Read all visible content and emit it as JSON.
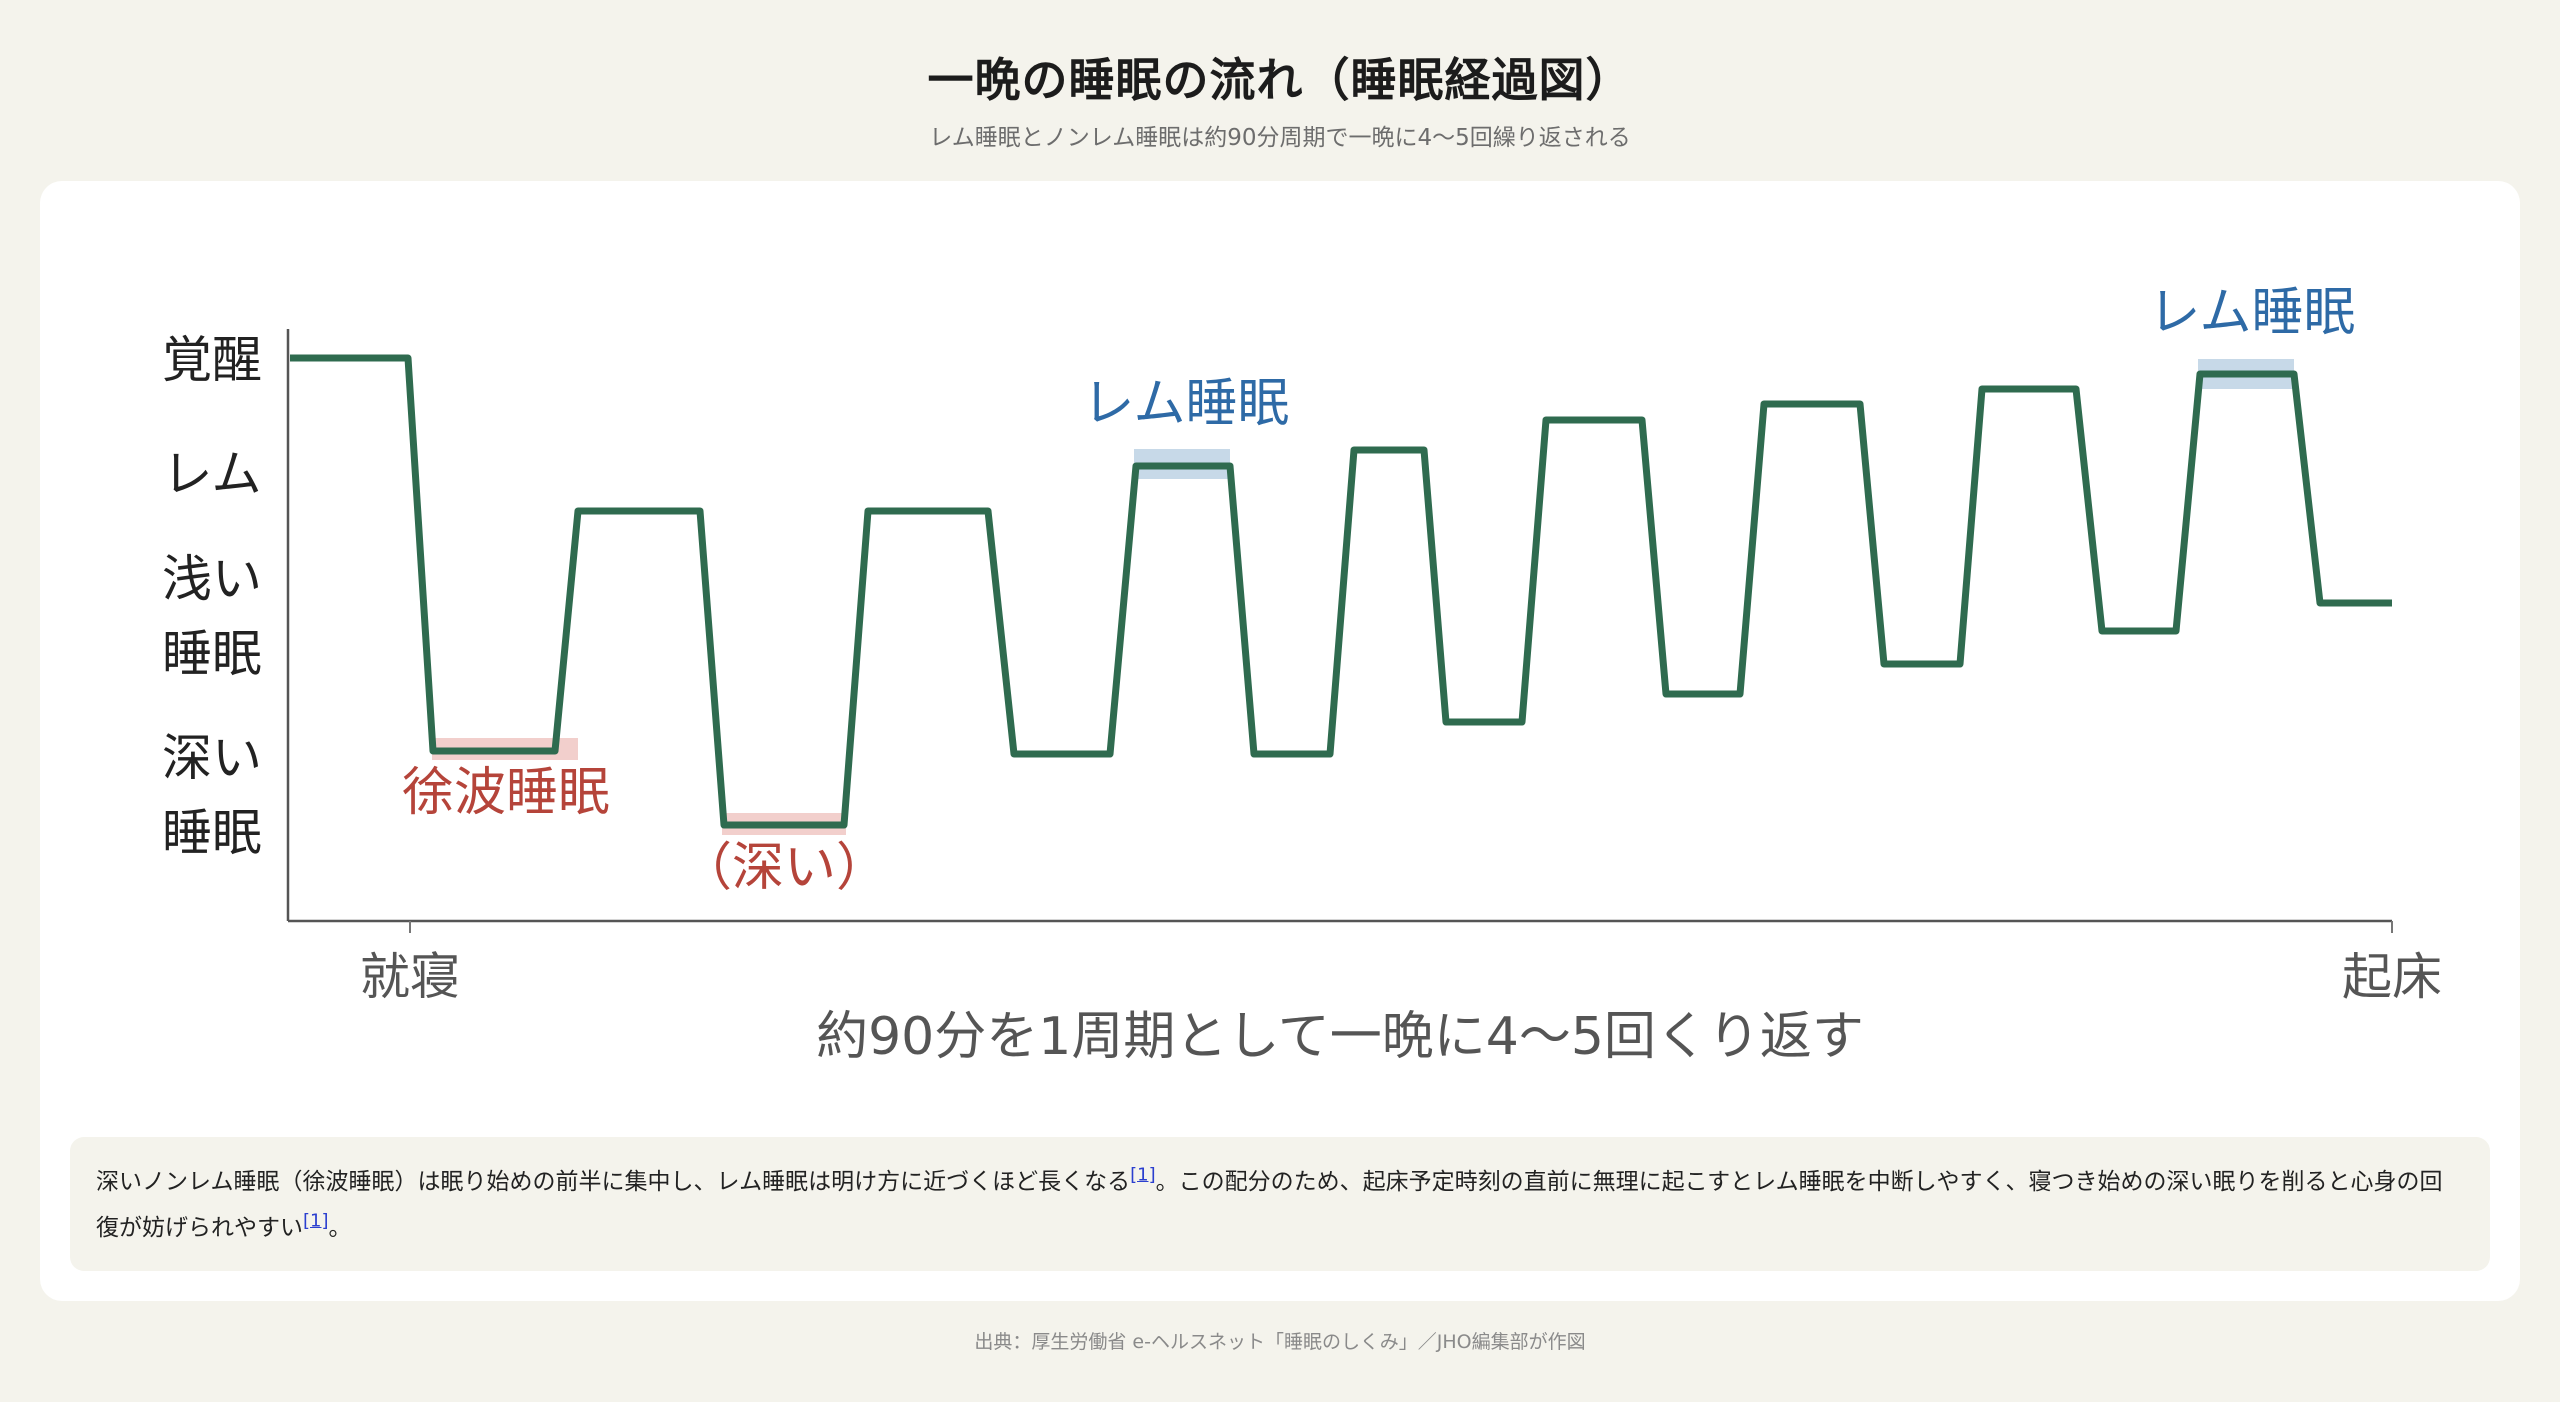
{
  "header": {
    "title": "一晩の睡眠の流れ（睡眠経過図）",
    "subtitle": "レム睡眠とノンレム睡眠は約90分周期で一晩に4〜5回繰り返される"
  },
  "diagram": {
    "y_levels": [
      "覚醒",
      "レム",
      "浅い睡眠",
      "深い睡眠"
    ],
    "y_label_lines": [
      [
        "覚醒"
      ],
      [
        "レム"
      ],
      [
        "浅い",
        "睡眠"
      ],
      [
        "深い",
        "睡眠"
      ]
    ],
    "x_start_label": "就寝",
    "x_end_label": "起床",
    "x_caption": "約90分を1周期として一晩に4〜5回くり返す",
    "annotations": {
      "slow_wave": "徐波睡眠",
      "deep_paren": "（深い）",
      "rem_mid": "レム睡眠",
      "rem_end": "レム睡眠"
    },
    "colors": {
      "line": "#2f6b4f",
      "deep_highlight": "#f2cfcc",
      "rem_highlight": "#c7d9e8",
      "deep_text": "#b5443a",
      "rem_text": "#2e6aa6",
      "axis": "#555555"
    }
  },
  "note": {
    "part1": "深いノンレム睡眠（徐波睡眠）は眠り始めの前半に集中し、レム睡眠は明け方に近づくほど長くなる",
    "ref1": "[1]",
    "part2": "。この配分のため、起床予定時刻の直前に無理に起こすとレム睡眠を中断しやすく、寝つき始めの深い眠りを削ると心身の回復が妨げられやすい",
    "ref2": "[1]",
    "part3": "。"
  },
  "source": "出典：厚生労働省 e-ヘルスネット「睡眠のしくみ」／JHO編集部が作図"
}
